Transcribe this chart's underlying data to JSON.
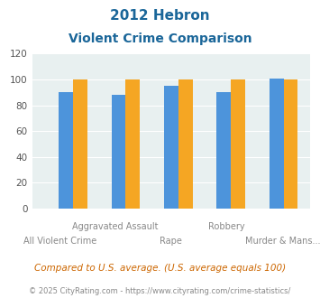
{
  "title_line1": "2012 Hebron",
  "title_line2": "Violent Crime Comparison",
  "categories": [
    "All Violent Crime",
    "Aggravated Assault",
    "Rape",
    "Robbery",
    "Murder & Mans..."
  ],
  "hebron": [
    0,
    0,
    0,
    0,
    0
  ],
  "indiana": [
    90,
    88,
    95,
    90,
    101
  ],
  "national": [
    100,
    100,
    100,
    100,
    100
  ],
  "colors": {
    "hebron": "#8dc63f",
    "indiana": "#4d94db",
    "national": "#f5a623"
  },
  "ylim": [
    0,
    120
  ],
  "yticks": [
    0,
    20,
    40,
    60,
    80,
    100,
    120
  ],
  "top_labels": [
    "",
    "Aggravated Assault",
    "",
    "Robbery",
    ""
  ],
  "bottom_labels": [
    "All Violent Crime",
    "",
    "Rape",
    "",
    "Murder & Mans..."
  ],
  "footnote1": "Compared to U.S. average. (U.S. average equals 100)",
  "footnote2": "© 2025 CityRating.com - https://www.cityrating.com/crime-statistics/",
  "bg_color": "#e8f0f0",
  "title_color": "#1a6699",
  "xlabel_color": "#888888",
  "footnote1_color": "#cc6600",
  "footnote2_color": "#888888"
}
